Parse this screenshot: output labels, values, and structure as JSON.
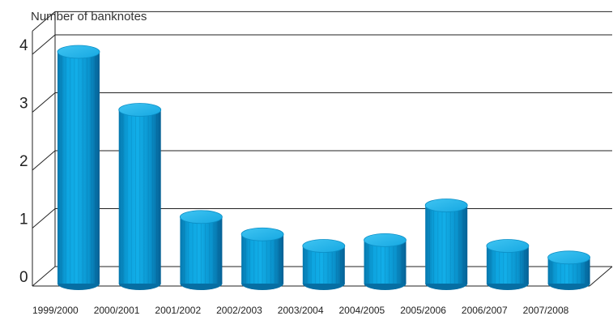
{
  "chart_data": {
    "type": "bar",
    "style": "3d-cylinder",
    "title": "",
    "xlabel": "",
    "ylabel": "Number of banknotes",
    "categories": [
      "1999/2000",
      "2000/2001",
      "2001/2002",
      "2002/2003",
      "2003/2004",
      "2004/2005",
      "2005/2006",
      "2006/2007",
      "2007/2008"
    ],
    "values": [
      4.0,
      3.0,
      1.15,
      0.85,
      0.65,
      0.75,
      1.35,
      0.65,
      0.45
    ],
    "yticks": [
      "0",
      "1",
      "2",
      "3",
      "4"
    ],
    "ylim": [
      0,
      4.4
    ],
    "grid": true,
    "colors": {
      "bar": "#0a9bd6",
      "bar_top": "#2cb8ea",
      "bar_dark": "#0577ad",
      "grid": "#222222"
    }
  }
}
